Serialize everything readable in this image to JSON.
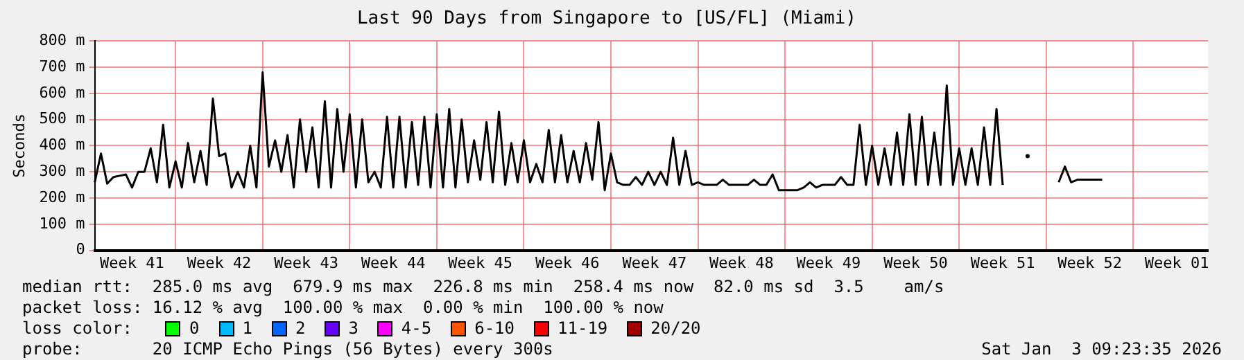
{
  "chart_data": {
    "type": "line",
    "title": "Last 90 Days from Singapore to [US/FL] (Miami)",
    "ylabel": "Seconds",
    "categories": [
      null,
      null,
      null,
      null,
      null,
      null,
      "Week 41",
      null,
      null,
      null,
      null,
      null,
      null,
      null,
      null,
      null,
      null,
      null,
      null,
      null,
      "Week 42",
      null,
      null,
      null,
      null,
      null,
      null,
      null,
      null,
      null,
      null,
      null,
      null,
      null,
      "Week 43",
      null,
      null,
      null,
      null,
      null,
      null,
      null,
      null,
      null,
      null,
      null,
      null,
      null,
      "Week 44",
      null,
      null,
      null,
      null,
      null,
      null,
      null,
      null,
      null,
      null,
      null,
      null,
      null,
      "Week 45",
      null,
      null,
      null,
      null,
      null,
      null,
      null,
      null,
      null,
      null,
      null,
      null,
      null,
      "Week 46",
      null,
      null,
      null,
      null,
      null,
      null,
      null,
      null,
      null,
      null,
      null,
      null,
      null,
      "Week 47",
      null,
      null,
      null,
      null,
      null,
      null,
      null,
      null,
      null,
      null,
      null,
      null,
      null,
      "Week 48",
      null,
      null,
      null,
      null,
      null,
      null,
      null,
      null,
      null,
      null,
      null,
      null,
      null,
      "Week 49",
      null,
      null,
      null,
      null,
      null,
      null,
      null,
      null,
      null,
      null,
      null,
      null,
      null,
      "Week 50",
      null,
      null,
      null,
      null,
      null,
      null,
      null,
      null,
      null,
      null,
      null,
      null,
      null,
      "Week 51",
      null,
      null,
      null,
      null,
      null,
      null,
      null,
      null,
      null,
      null,
      null,
      null,
      null,
      "Week 52",
      null,
      null,
      null,
      null,
      null,
      null,
      null,
      null,
      null,
      null,
      null,
      null,
      null,
      "Week 01",
      null,
      null,
      null,
      null,
      null
    ],
    "ylim": [
      0,
      800
    ],
    "yticks": [
      0,
      {
        "value": 100,
        "label": "100 m"
      },
      {
        "value": 200,
        "label": "200 m"
      },
      {
        "value": 300,
        "label": "300 m"
      },
      {
        "value": 400,
        "label": "400 m"
      },
      {
        "value": 500,
        "label": "500 m"
      },
      {
        "value": 600,
        "label": "600 m"
      },
      {
        "value": 700,
        "label": "700 m"
      },
      {
        "value": 800,
        "label": "800 m"
      }
    ],
    "grid": true,
    "legend": "bottom",
    "legend_title": "loss color:",
    "line_style": "solid",
    "marker": "none",
    "series": [
      {
        "color": "#000000",
        "values": [
          260,
          370,
          255,
          280,
          285,
          290,
          240,
          300,
          300,
          390,
          260,
          480,
          240,
          340,
          240,
          410,
          260,
          380,
          250,
          580,
          360,
          370,
          240,
          300,
          240,
          400,
          240,
          680,
          320,
          420,
          300,
          440,
          240,
          500,
          300,
          470,
          240,
          570,
          240,
          540,
          300,
          520,
          240,
          500,
          260,
          300,
          240,
          510,
          240,
          510,
          240,
          490,
          250,
          510,
          240,
          520,
          240,
          540,
          240,
          500,
          260,
          420,
          270,
          490,
          260,
          530,
          250,
          410,
          260,
          420,
          260,
          330,
          260,
          460,
          260,
          440,
          260,
          380,
          260,
          410,
          270,
          490,
          230,
          370,
          260,
          250,
          250,
          280,
          250,
          300,
          250,
          300,
          250,
          430,
          250,
          380,
          250,
          260,
          250,
          250,
          250,
          270,
          250,
          250,
          250,
          250,
          270,
          250,
          250,
          290,
          230,
          230,
          230,
          230,
          240,
          260,
          240,
          250,
          250,
          250,
          280,
          250,
          250,
          480,
          250,
          400,
          250,
          390,
          250,
          450,
          250,
          520,
          250,
          510,
          250,
          450,
          250,
          630,
          250,
          390,
          250,
          390,
          250,
          470,
          250,
          540,
          250,
          null,
          null,
          null,
          360,
          null,
          null,
          null,
          null,
          260,
          320,
          260,
          270,
          270,
          270,
          270,
          270,
          null,
          null,
          null,
          null,
          null,
          null,
          null,
          null,
          null,
          null,
          null,
          null,
          null,
          null,
          null,
          null,
          null
        ]
      },
      {
        "name": "0",
        "color": "#00ff00",
        "values": [
          null,
          null,
          null,
          null,
          null,
          null,
          null,
          null,
          null,
          null,
          null,
          null,
          null,
          null,
          null,
          null,
          null,
          null,
          null,
          null,
          null,
          null,
          null,
          null,
          null,
          null,
          null,
          null,
          null,
          null,
          null,
          null,
          null,
          null,
          null,
          null,
          null,
          null,
          null,
          null,
          null,
          null,
          null,
          null,
          null,
          null,
          null,
          null,
          null,
          null,
          null,
          null,
          null,
          null,
          null,
          null,
          null,
          null,
          null,
          null,
          null,
          null,
          null,
          null,
          null,
          null,
          null,
          null,
          null,
          null,
          null,
          null,
          null,
          null,
          null,
          null,
          null,
          null,
          null,
          null,
          null,
          null,
          null,
          null,
          null,
          null,
          null,
          null,
          null,
          null,
          null,
          null,
          null,
          null,
          null,
          null,
          null,
          null,
          null,
          null,
          null,
          null,
          null,
          null,
          null,
          null,
          null,
          null,
          null,
          null,
          null,
          null,
          null,
          null,
          null,
          null,
          null,
          null,
          null,
          null,
          null,
          null,
          null,
          null,
          null,
          null,
          null,
          null,
          null,
          null,
          null,
          null,
          null,
          null,
          null,
          null,
          null,
          null,
          null,
          null,
          null,
          null,
          null,
          null,
          null,
          null,
          null,
          null,
          null,
          null,
          null,
          null,
          null,
          null,
          null,
          null,
          null,
          null,
          null,
          null,
          null,
          null,
          null,
          null,
          null,
          null,
          null,
          null,
          null,
          null,
          null,
          null,
          null,
          null,
          null,
          null,
          null,
          null,
          null,
          null
        ]
      },
      {
        "name": "1",
        "color": "#00bbff",
        "values": [
          null,
          null,
          null,
          null,
          null,
          null,
          null,
          null,
          null,
          null,
          null,
          null,
          null,
          null,
          null,
          null,
          null,
          null,
          null,
          null,
          null,
          null,
          null,
          null,
          null,
          null,
          null,
          null,
          null,
          null,
          null,
          null,
          null,
          null,
          null,
          null,
          null,
          null,
          null,
          null,
          null,
          null,
          null,
          null,
          null,
          null,
          null,
          null,
          null,
          null,
          null,
          null,
          null,
          null,
          null,
          null,
          null,
          null,
          null,
          null,
          null,
          null,
          null,
          null,
          null,
          null,
          null,
          null,
          null,
          null,
          null,
          null,
          null,
          null,
          null,
          null,
          null,
          null,
          null,
          null,
          null,
          null,
          null,
          null,
          null,
          null,
          null,
          null,
          null,
          null,
          null,
          null,
          null,
          null,
          null,
          null,
          null,
          null,
          null,
          null,
          null,
          null,
          null,
          null,
          null,
          null,
          null,
          null,
          null,
          null,
          null,
          null,
          null,
          null,
          null,
          null,
          null,
          null,
          null,
          null,
          null,
          null,
          null,
          null,
          null,
          null,
          null,
          null,
          null,
          null,
          null,
          null,
          null,
          null,
          null,
          null,
          null,
          null,
          null,
          null,
          null,
          null,
          null,
          null,
          null,
          null,
          null,
          null,
          null,
          null,
          null,
          null,
          null,
          null,
          null,
          null,
          null,
          null,
          null,
          null,
          null,
          null,
          null,
          null,
          null,
          null,
          null,
          null,
          null,
          null,
          null,
          null,
          null,
          null,
          null,
          null,
          null,
          null,
          null,
          null
        ]
      },
      {
        "name": "2",
        "color": "#0066ff",
        "values": [
          null,
          null,
          null,
          null,
          null,
          null,
          null,
          null,
          null,
          null,
          null,
          null,
          null,
          null,
          null,
          null,
          null,
          null,
          null,
          null,
          null,
          null,
          null,
          null,
          null,
          null,
          null,
          null,
          null,
          null,
          null,
          null,
          null,
          null,
          null,
          null,
          null,
          null,
          null,
          null,
          null,
          null,
          null,
          null,
          null,
          null,
          null,
          null,
          null,
          null,
          null,
          null,
          null,
          null,
          null,
          null,
          null,
          null,
          null,
          null,
          null,
          null,
          null,
          null,
          null,
          null,
          null,
          null,
          null,
          null,
          null,
          null,
          null,
          null,
          null,
          null,
          null,
          null,
          null,
          null,
          null,
          null,
          null,
          null,
          null,
          null,
          null,
          null,
          null,
          null,
          null,
          null,
          null,
          null,
          null,
          null,
          null,
          null,
          null,
          null,
          null,
          null,
          null,
          null,
          null,
          null,
          null,
          null,
          null,
          null,
          null,
          null,
          null,
          null,
          null,
          null,
          null,
          null,
          null,
          null,
          null,
          null,
          null,
          null,
          null,
          null,
          null,
          null,
          null,
          null,
          null,
          null,
          null,
          null,
          null,
          null,
          null,
          null,
          null,
          null,
          null,
          null,
          null,
          null,
          null,
          null,
          null,
          null,
          null,
          null,
          null,
          null,
          null,
          null,
          null,
          null,
          null,
          null,
          null,
          null,
          null,
          null,
          null,
          null,
          null,
          null,
          null,
          null,
          null,
          null,
          null,
          null,
          null,
          null,
          null,
          null,
          null,
          null,
          null,
          null
        ]
      },
      {
        "name": "3",
        "color": "#6600ff",
        "values": [
          null,
          null,
          null,
          null,
          null,
          null,
          null,
          null,
          null,
          null,
          null,
          null,
          null,
          null,
          null,
          null,
          null,
          null,
          null,
          null,
          null,
          null,
          null,
          null,
          null,
          null,
          null,
          null,
          null,
          null,
          null,
          null,
          null,
          null,
          null,
          null,
          null,
          null,
          null,
          null,
          null,
          null,
          null,
          null,
          null,
          null,
          null,
          null,
          null,
          null,
          null,
          null,
          null,
          null,
          null,
          null,
          null,
          null,
          null,
          null,
          null,
          null,
          null,
          null,
          null,
          null,
          null,
          null,
          null,
          null,
          null,
          null,
          null,
          null,
          null,
          null,
          null,
          null,
          null,
          null,
          null,
          null,
          null,
          null,
          null,
          null,
          null,
          null,
          null,
          null,
          null,
          null,
          null,
          null,
          null,
          null,
          null,
          null,
          null,
          null,
          null,
          null,
          null,
          null,
          null,
          null,
          null,
          null,
          null,
          null,
          null,
          null,
          null,
          null,
          null,
          null,
          null,
          null,
          null,
          null,
          null,
          null,
          null,
          null,
          null,
          null,
          null,
          null,
          null,
          null,
          null,
          null,
          null,
          null,
          null,
          null,
          null,
          null,
          null,
          null,
          null,
          null,
          null,
          null,
          null,
          null,
          null,
          null,
          null,
          null,
          null,
          null,
          null,
          null,
          null,
          null,
          null,
          null,
          null,
          null,
          null,
          null,
          null,
          null,
          null,
          null,
          null,
          null,
          null,
          null,
          null,
          null,
          null,
          null,
          null,
          null,
          null,
          null,
          null,
          null
        ]
      },
      {
        "name": "4-5",
        "color": "#ff00ff",
        "values": [
          null,
          null,
          null,
          null,
          null,
          null,
          null,
          null,
          null,
          null,
          null,
          null,
          null,
          null,
          null,
          null,
          null,
          null,
          null,
          null,
          null,
          null,
          null,
          null,
          null,
          null,
          null,
          null,
          null,
          null,
          null,
          null,
          null,
          null,
          null,
          null,
          null,
          null,
          null,
          null,
          null,
          null,
          null,
          null,
          null,
          null,
          null,
          null,
          null,
          null,
          null,
          null,
          null,
          null,
          null,
          null,
          null,
          null,
          null,
          null,
          null,
          null,
          null,
          null,
          null,
          null,
          null,
          null,
          null,
          null,
          null,
          null,
          null,
          null,
          null,
          null,
          null,
          null,
          null,
          null,
          null,
          null,
          null,
          null,
          null,
          null,
          null,
          null,
          null,
          null,
          null,
          null,
          null,
          null,
          null,
          null,
          null,
          null,
          null,
          null,
          null,
          null,
          null,
          null,
          null,
          null,
          null,
          null,
          null,
          null,
          null,
          null,
          null,
          null,
          null,
          null,
          null,
          null,
          null,
          null,
          null,
          null,
          null,
          null,
          null,
          null,
          null,
          null,
          null,
          null,
          null,
          null,
          null,
          null,
          null,
          null,
          null,
          null,
          null,
          null,
          null,
          null,
          null,
          null,
          null,
          null,
          null,
          null,
          null,
          null,
          null,
          null,
          null,
          null,
          null,
          null,
          null,
          null,
          null,
          null,
          null,
          null,
          null,
          null,
          null,
          null,
          null,
          null,
          null,
          null,
          null,
          null,
          null,
          null,
          null,
          null,
          null,
          null,
          null,
          null
        ]
      },
      {
        "name": "6-10",
        "color": "#ff5500",
        "values": [
          null,
          null,
          null,
          null,
          null,
          null,
          null,
          null,
          null,
          null,
          null,
          null,
          null,
          null,
          null,
          null,
          null,
          null,
          null,
          null,
          null,
          null,
          null,
          null,
          null,
          null,
          null,
          null,
          null,
          null,
          null,
          null,
          null,
          null,
          null,
          null,
          null,
          null,
          null,
          null,
          null,
          null,
          null,
          null,
          null,
          null,
          null,
          null,
          null,
          null,
          null,
          null,
          null,
          null,
          null,
          null,
          null,
          null,
          null,
          null,
          null,
          null,
          null,
          null,
          null,
          null,
          null,
          null,
          null,
          null,
          null,
          null,
          null,
          null,
          null,
          null,
          null,
          null,
          null,
          null,
          null,
          null,
          null,
          null,
          null,
          null,
          null,
          null,
          null,
          null,
          null,
          null,
          null,
          null,
          null,
          null,
          null,
          null,
          null,
          null,
          null,
          null,
          null,
          null,
          null,
          null,
          null,
          null,
          null,
          null,
          null,
          null,
          null,
          null,
          null,
          null,
          null,
          null,
          null,
          null,
          null,
          null,
          null,
          null,
          null,
          null,
          null,
          null,
          null,
          null,
          null,
          null,
          null,
          null,
          null,
          null,
          null,
          null,
          null,
          null,
          null,
          null,
          null,
          null,
          null,
          null,
          null,
          null,
          null,
          null,
          null,
          null,
          null,
          null,
          null,
          null,
          null,
          null,
          null,
          null,
          null,
          null,
          null,
          null,
          null,
          null,
          null,
          null,
          null,
          null,
          null,
          null,
          null,
          null,
          null,
          null,
          null,
          null,
          null,
          null
        ]
      },
      {
        "name": "11-19",
        "color": "#ff0000",
        "values": [
          null,
          null,
          null,
          null,
          null,
          null,
          null,
          null,
          null,
          null,
          null,
          null,
          null,
          null,
          null,
          null,
          null,
          null,
          null,
          null,
          null,
          null,
          null,
          null,
          null,
          null,
          null,
          null,
          null,
          null,
          null,
          null,
          null,
          null,
          null,
          null,
          null,
          null,
          null,
          null,
          null,
          null,
          null,
          null,
          null,
          null,
          null,
          null,
          null,
          null,
          null,
          null,
          null,
          null,
          null,
          null,
          null,
          null,
          null,
          null,
          null,
          null,
          null,
          null,
          null,
          null,
          null,
          null,
          null,
          null,
          null,
          null,
          null,
          null,
          null,
          null,
          null,
          null,
          null,
          null,
          null,
          null,
          null,
          null,
          null,
          null,
          null,
          null,
          null,
          null,
          null,
          null,
          null,
          null,
          null,
          null,
          null,
          null,
          null,
          null,
          null,
          null,
          null,
          null,
          null,
          null,
          null,
          null,
          null,
          null,
          null,
          null,
          null,
          null,
          null,
          null,
          null,
          null,
          null,
          null,
          null,
          null,
          null,
          null,
          null,
          null,
          null,
          null,
          null,
          null,
          null,
          null,
          null,
          null,
          null,
          null,
          null,
          null,
          null,
          null,
          null,
          null,
          null,
          null,
          null,
          null,
          null,
          null,
          null,
          null,
          null,
          null,
          null,
          null,
          null,
          null,
          null,
          null,
          null,
          null,
          null,
          null,
          null,
          null,
          null,
          null,
          null,
          null,
          null,
          null,
          null,
          null,
          null,
          null,
          null,
          null,
          null,
          null,
          null,
          null
        ]
      },
      {
        "name": "20/20",
        "color": "#a10000",
        "values": [
          null,
          null,
          null,
          null,
          null,
          null,
          null,
          null,
          null,
          null,
          null,
          null,
          null,
          null,
          null,
          null,
          null,
          null,
          null,
          null,
          null,
          null,
          null,
          null,
          null,
          null,
          null,
          null,
          null,
          null,
          null,
          null,
          null,
          null,
          null,
          null,
          null,
          null,
          null,
          null,
          null,
          null,
          null,
          null,
          null,
          null,
          null,
          null,
          null,
          null,
          null,
          null,
          null,
          null,
          null,
          null,
          null,
          null,
          null,
          null,
          null,
          null,
          null,
          null,
          null,
          null,
          null,
          null,
          null,
          null,
          null,
          null,
          null,
          null,
          null,
          null,
          null,
          null,
          null,
          null,
          null,
          null,
          null,
          null,
          null,
          null,
          null,
          null,
          null,
          null,
          null,
          null,
          null,
          null,
          null,
          null,
          null,
          null,
          null,
          null,
          null,
          null,
          null,
          null,
          null,
          null,
          null,
          null,
          null,
          null,
          null,
          null,
          null,
          null,
          null,
          null,
          null,
          null,
          null,
          null,
          null,
          null,
          null,
          null,
          null,
          null,
          null,
          null,
          null,
          null,
          null,
          null,
          null,
          null,
          null,
          null,
          null,
          null,
          null,
          null,
          null,
          null,
          null,
          null,
          null,
          null,
          null,
          null,
          null,
          null,
          null,
          null,
          null,
          null,
          null,
          null,
          null,
          null,
          null,
          null,
          null,
          null,
          null,
          null,
          null,
          null,
          null,
          null,
          null,
          null,
          null,
          null,
          null,
          null,
          null,
          null,
          null,
          null,
          null,
          null
        ]
      }
    ],
    "annotations": [
      "median rtt:  285.0 ms avg  679.9 ms max  226.8 ms min  258.4 ms now  82.0 ms sd  3.5    am/s",
      "packet loss: 16.12 % avg  100.00 % max  0.00 % min  100.00 % now",
      "probe:       20 ICMP Echo Pings (56 Bytes) every 300s",
      "Sat Jan  3 09:23:35 2026"
    ]
  }
}
